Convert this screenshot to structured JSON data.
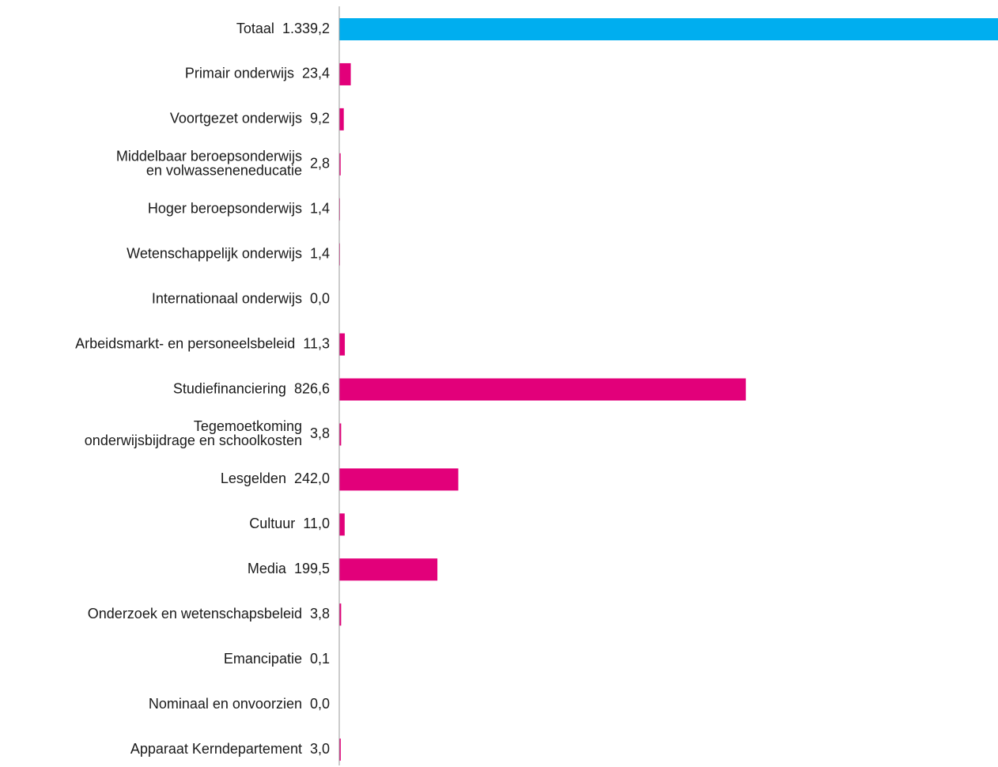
{
  "chart_data": {
    "type": "bar",
    "orientation": "horizontal",
    "title": "",
    "xlabel": "",
    "ylabel": "",
    "grid": false,
    "categories": [
      [
        "Totaal"
      ],
      [
        "Primair onderwijs"
      ],
      [
        "Voortgezet onderwijs"
      ],
      [
        "Middelbaar beroepsonderwijs",
        "en volwasseneneducatie"
      ],
      [
        "Hoger beroepsonderwijs"
      ],
      [
        "Wetenschappelijk onderwijs"
      ],
      [
        "Internationaal onderwijs"
      ],
      [
        "Arbeidsmarkt- en personeelsbeleid"
      ],
      [
        "Studiefinanciering"
      ],
      [
        "Tegemoetkoming",
        "onderwijsbijdrage en schoolkosten"
      ],
      [
        "Lesgelden"
      ],
      [
        "Cultuur"
      ],
      [
        "Media"
      ],
      [
        "Onderzoek en wetenschapsbeleid"
      ],
      [
        "Emancipatie"
      ],
      [
        "Nominaal en onvoorzien"
      ],
      [
        "Apparaat Kerndepartement"
      ]
    ],
    "values": [
      1339.2,
      23.4,
      9.2,
      2.8,
      1.4,
      1.4,
      0.0,
      11.3,
      826.6,
      3.8,
      242.0,
      11.0,
      199.5,
      3.8,
      0.1,
      0.0,
      3.0
    ],
    "value_labels": [
      "1.339,2",
      "23,4",
      "9,2",
      "2,8",
      "1,4",
      "1,4",
      "0,0",
      "11,3",
      "826,6",
      "3,8",
      "242,0",
      "11,0",
      "199,5",
      "3,8",
      "0,1",
      "0,0",
      "3,0"
    ],
    "xlim": [
      0,
      1339.2
    ],
    "colors": {
      "total": "#00aeef",
      "items": "#e2007a",
      "axis": "#9a9a9a"
    }
  }
}
